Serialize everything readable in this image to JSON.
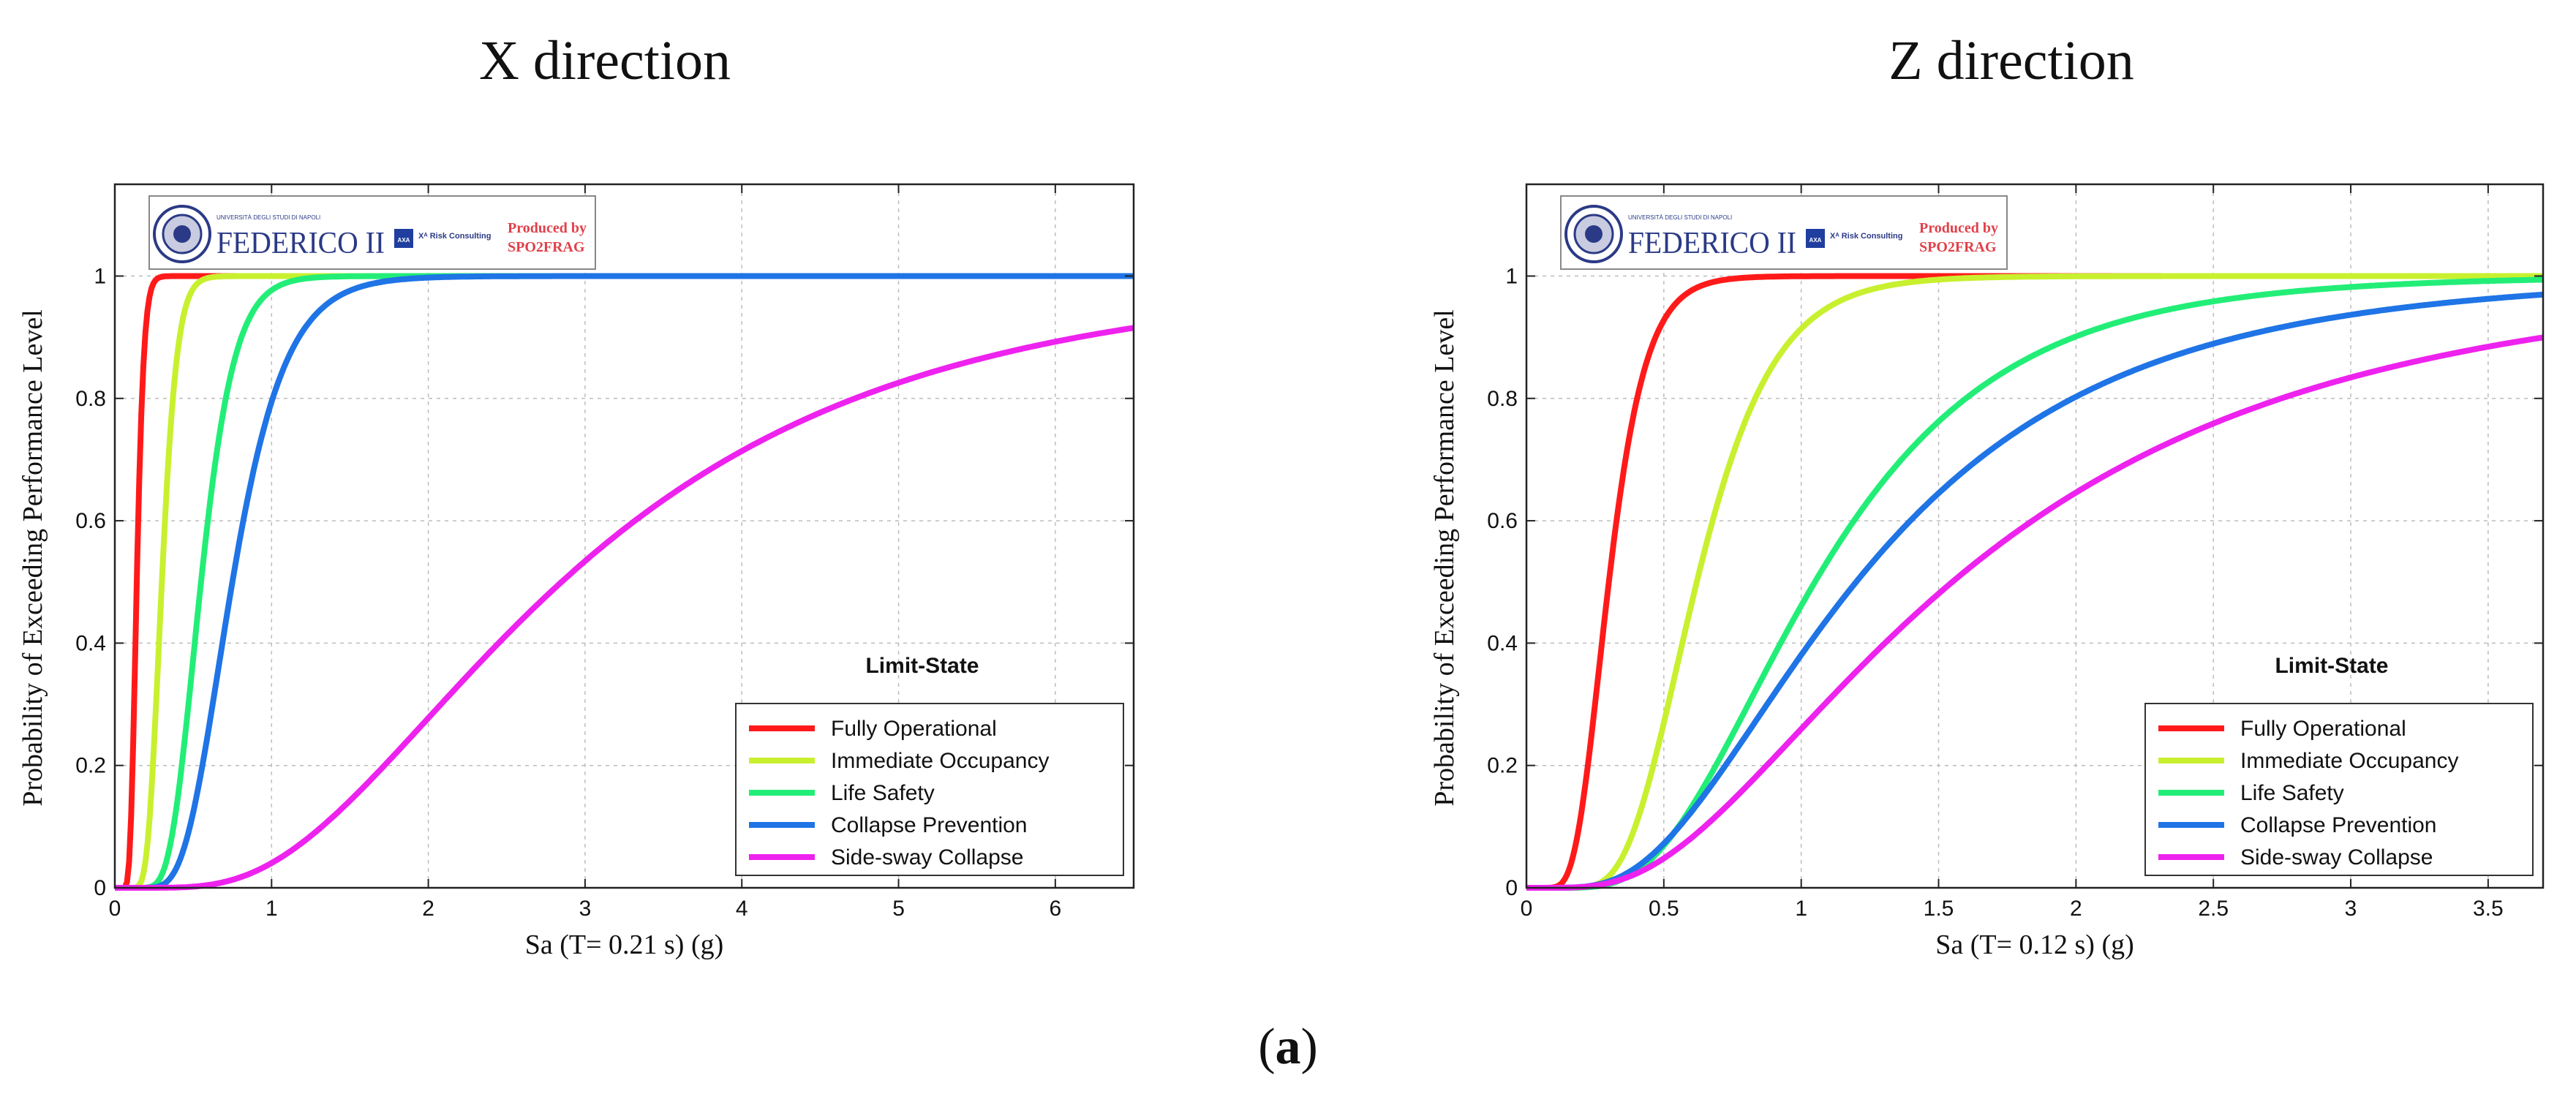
{
  "caption": {
    "open": "(",
    "letter": "a",
    "close": ")"
  },
  "logo": {
    "university": "UNIVERSITÀ DEGLI STUDI DI NAPOLI",
    "name": "FEDERICO II",
    "axa": "AXA",
    "risk": "Xᴬ Risk Consulting",
    "produced_by": "Produced by",
    "tool": "SPO2FRAG"
  },
  "colors": {
    "Fully Operational": "#ff1a1a",
    "Immediate Occupancy": "#c8f02e",
    "Life Safety": "#22ee77",
    "Collapse Prevention": "#1f74e6",
    "Side-sway Collapse": "#ee22ee"
  },
  "chart_data": [
    {
      "type": "line",
      "title": "X direction",
      "xlabel": "Sa (T= 0.21 s) (g)",
      "ylabel": "Probability of Exceeding Performance Level",
      "xlim": [
        0,
        6.5
      ],
      "ylim": [
        0,
        1.15
      ],
      "xticks": [
        0,
        1,
        2,
        3,
        4,
        5,
        6
      ],
      "xtick_labels": [
        "0",
        "1",
        "2",
        "3",
        "4",
        "5",
        "6"
      ],
      "yticks": [
        0,
        0.2,
        0.4,
        0.6,
        0.8,
        1
      ],
      "ytick_labels": [
        "0",
        "0.2",
        "0.4",
        "0.6",
        "0.8",
        "1"
      ],
      "grid": true,
      "legend_title": "Limit-State",
      "legend_position": "bottom-right",
      "series": [
        {
          "name": "Fully Operational",
          "median": 0.14,
          "beta": 0.25
        },
        {
          "name": "Immediate Occupancy",
          "median": 0.3,
          "beta": 0.25
        },
        {
          "name": "Life Safety",
          "median": 0.55,
          "beta": 0.3
        },
        {
          "name": "Collapse Prevention",
          "median": 0.75,
          "beta": 0.35
        },
        {
          "name": "Side-sway Collapse",
          "median": 2.85,
          "beta": 0.6
        }
      ]
    },
    {
      "type": "line",
      "title": "Z direction",
      "xlabel": "Sa (T= 0.12 s) (g)",
      "ylabel": "Probability of Exceeding Performance Level",
      "xlim": [
        0,
        3.7
      ],
      "ylim": [
        0,
        1.15
      ],
      "xticks": [
        0,
        0.5,
        1,
        1.5,
        2,
        2.5,
        3,
        3.5
      ],
      "xtick_labels": [
        "0",
        "0.5",
        "1",
        "1.5",
        "2",
        "2.5",
        "3",
        "3.5"
      ],
      "yticks": [
        0,
        0.2,
        0.4,
        0.6,
        0.8,
        1
      ],
      "ytick_labels": [
        "0",
        "0.2",
        "0.4",
        "0.6",
        "0.8",
        "1"
      ],
      "grid": true,
      "legend_title": "Limit-State",
      "legend_position": "bottom-right",
      "series": [
        {
          "name": "Fully Operational",
          "median": 0.3,
          "beta": 0.35
        },
        {
          "name": "Immediate Occupancy",
          "median": 0.62,
          "beta": 0.35
        },
        {
          "name": "Life Safety",
          "median": 1.05,
          "beta": 0.5
        },
        {
          "name": "Collapse Prevention",
          "median": 1.2,
          "beta": 0.6
        },
        {
          "name": "Side-sway Collapse",
          "median": 1.55,
          "beta": 0.68
        }
      ]
    }
  ]
}
